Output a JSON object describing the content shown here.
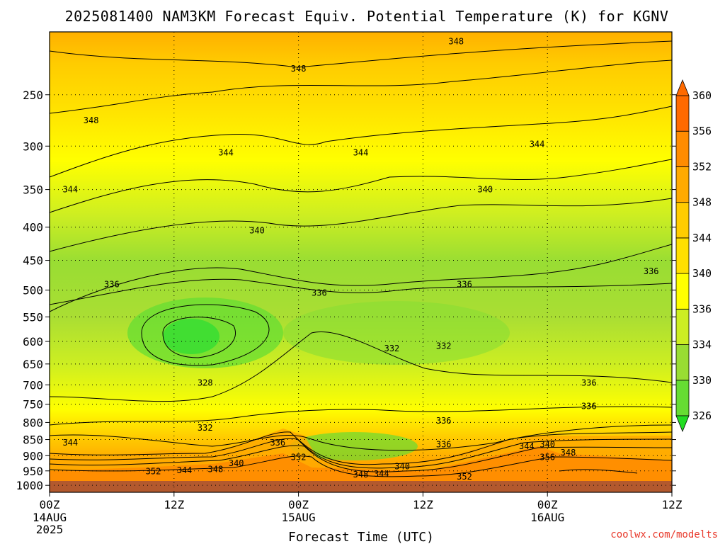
{
  "chart_data": {
    "type": "heatmap",
    "title": "2025081400 NAM3KM Forecast Equiv. Potential Temperature (K) for KGNV",
    "xlabel": "Forecast Time (UTC)",
    "ylabel": "",
    "x_ticks": [
      {
        "hours": 0,
        "label": "00Z",
        "date": "14AUG",
        "year": "2025"
      },
      {
        "hours": 12,
        "label": "12Z"
      },
      {
        "hours": 24,
        "label": "00Z",
        "date": "15AUG"
      },
      {
        "hours": 36,
        "label": "12Z"
      },
      {
        "hours": 48,
        "label": "00Z",
        "date": "16AUG"
      },
      {
        "hours": 60,
        "label": "12Z"
      }
    ],
    "xlim_hours": [
      0,
      60
    ],
    "y_axis": {
      "scale": "log",
      "inverted": true,
      "units": "hPa",
      "range": [
        1025,
        200
      ]
    },
    "y_ticks": [
      250,
      300,
      350,
      400,
      450,
      500,
      550,
      600,
      650,
      700,
      750,
      800,
      850,
      900,
      950,
      1000
    ],
    "colorbar": {
      "levels": [
        326,
        330,
        334,
        336,
        340,
        344,
        348,
        352,
        356,
        360
      ],
      "colors": [
        "#22dd22",
        "#66dd33",
        "#99dd33",
        "#ccee22",
        "#ffff00",
        "#ffe000",
        "#ffcc00",
        "#ffaa00",
        "#ff8c00",
        "#ff6a00"
      ],
      "extend": "both"
    },
    "grid": true,
    "contour_interval": 2,
    "contour_labels": [
      {
        "value": "348",
        "hour": 39.2,
        "p": 207
      },
      {
        "value": "348",
        "hour": 24.0,
        "p": 228
      },
      {
        "value": "348",
        "hour": 4.0,
        "p": 274
      },
      {
        "value": "344",
        "hour": 17.0,
        "p": 307
      },
      {
        "value": "344",
        "hour": 30.0,
        "p": 307
      },
      {
        "value": "344",
        "hour": 47.0,
        "p": 298
      },
      {
        "value": "344",
        "hour": 2.0,
        "p": 350
      },
      {
        "value": "340",
        "hour": 42.0,
        "p": 350
      },
      {
        "value": "340",
        "hour": 20.0,
        "p": 405
      },
      {
        "value": "336",
        "hour": 58.0,
        "p": 468
      },
      {
        "value": "336",
        "hour": 6.0,
        "p": 490
      },
      {
        "value": "336",
        "hour": 26.0,
        "p": 505
      },
      {
        "value": "336",
        "hour": 40.0,
        "p": 490
      },
      {
        "value": "332",
        "hour": 33.0,
        "p": 615
      },
      {
        "value": "332",
        "hour": 38.0,
        "p": 610
      },
      {
        "value": "328",
        "hour": 15.0,
        "p": 695
      },
      {
        "value": "336",
        "hour": 52.0,
        "p": 695
      },
      {
        "value": "336",
        "hour": 52.0,
        "p": 755
      },
      {
        "value": "332",
        "hour": 15.0,
        "p": 815
      },
      {
        "value": "336",
        "hour": 38.0,
        "p": 795
      },
      {
        "value": "336",
        "hour": 38.0,
        "p": 865
      },
      {
        "value": "344",
        "hour": 2.0,
        "p": 860
      },
      {
        "value": "336",
        "hour": 22.0,
        "p": 860
      },
      {
        "value": "340",
        "hour": 48.0,
        "p": 865
      },
      {
        "value": "344",
        "hour": 46.0,
        "p": 870
      },
      {
        "value": "348",
        "hour": 50.0,
        "p": 890
      },
      {
        "value": "352",
        "hour": 24.0,
        "p": 905
      },
      {
        "value": "356",
        "hour": 48.0,
        "p": 905
      },
      {
        "value": "340",
        "hour": 18.0,
        "p": 925
      },
      {
        "value": "340",
        "hour": 34.0,
        "p": 935
      },
      {
        "value": "348",
        "hour": 16.0,
        "p": 945
      },
      {
        "value": "344",
        "hour": 13.0,
        "p": 948
      },
      {
        "value": "352",
        "hour": 10.0,
        "p": 952
      },
      {
        "value": "348",
        "hour": 30.0,
        "p": 962
      },
      {
        "value": "344",
        "hour": 32.0,
        "p": 960
      },
      {
        "value": "352",
        "hour": 40.0,
        "p": 970
      }
    ]
  },
  "credit": "coolwx.com/modelts"
}
